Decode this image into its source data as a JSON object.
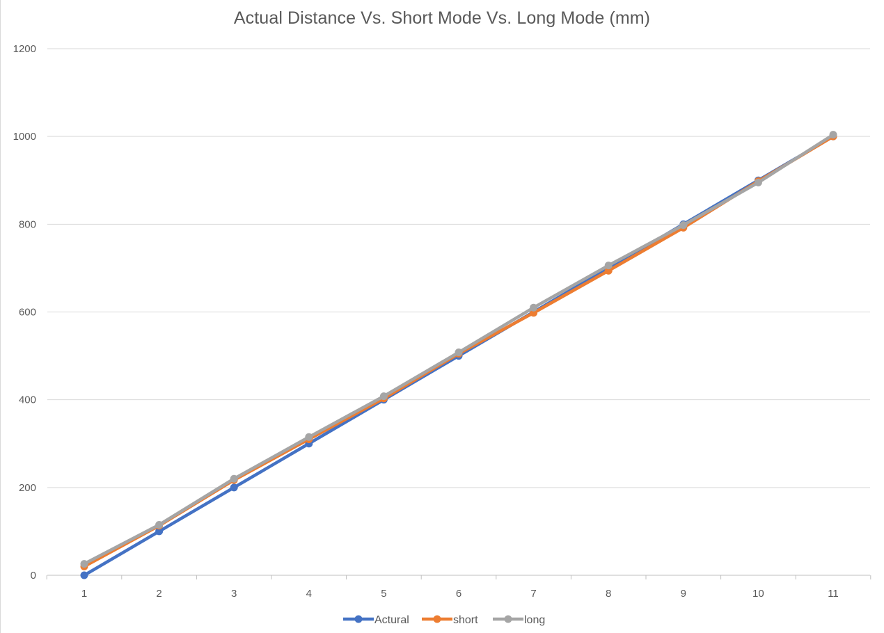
{
  "chart_data": {
    "type": "line",
    "title": "Actual Distance Vs. Short Mode Vs. Long Mode (mm)",
    "xlabel": "",
    "ylabel": "",
    "categories": [
      "1",
      "2",
      "3",
      "4",
      "5",
      "6",
      "7",
      "8",
      "9",
      "10",
      "11"
    ],
    "ylim": [
      0,
      1200
    ],
    "yticks": [
      "0",
      "200",
      "400",
      "600",
      "800",
      "1000",
      "1200"
    ],
    "grid": true,
    "legend_position": "bottom",
    "series": [
      {
        "name": "Actural",
        "color": "#4472C4",
        "values": [
          0,
          100,
          200,
          300,
          400,
          500,
          600,
          700,
          800,
          900,
          1000
        ]
      },
      {
        "name": "short",
        "color": "#ED7D31",
        "values": [
          20,
          113,
          217,
          310,
          403,
          505,
          598,
          694,
          792,
          898,
          1000
        ]
      },
      {
        "name": "long",
        "color": "#A5A5A5",
        "values": [
          26,
          115,
          220,
          315,
          408,
          508,
          610,
          706,
          798,
          895,
          1004
        ]
      }
    ]
  }
}
